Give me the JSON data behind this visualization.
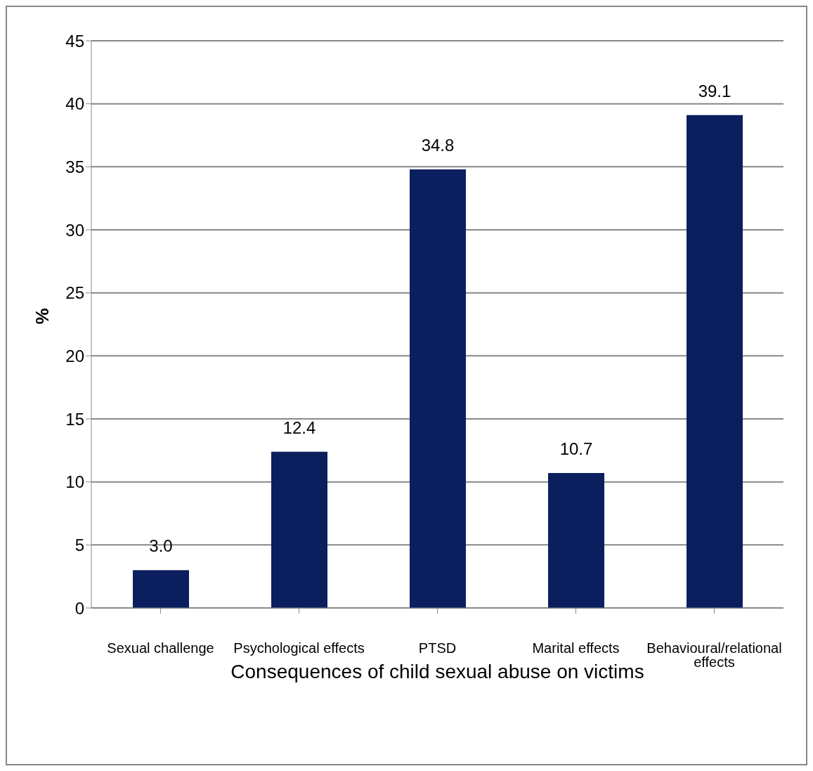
{
  "chart_data": {
    "type": "bar",
    "xlabel": "Consequences of child sexual abuse on victims",
    "ylabel": "%",
    "categories": [
      "Sexual challenge",
      "Psychological effects",
      "PTSD",
      "Marital effects",
      "Behavioural/relational effects"
    ],
    "values": [
      3.0,
      12.4,
      34.8,
      10.7,
      39.1
    ],
    "value_labels": [
      "3.0",
      "12.4",
      "34.8",
      "10.7",
      "39.1"
    ],
    "color": "#0b1f5e",
    "ylim": [
      0,
      45
    ],
    "yticks": [
      0,
      5,
      10,
      15,
      20,
      25,
      30,
      35,
      40,
      45
    ],
    "grid": "y",
    "legend": false
  }
}
